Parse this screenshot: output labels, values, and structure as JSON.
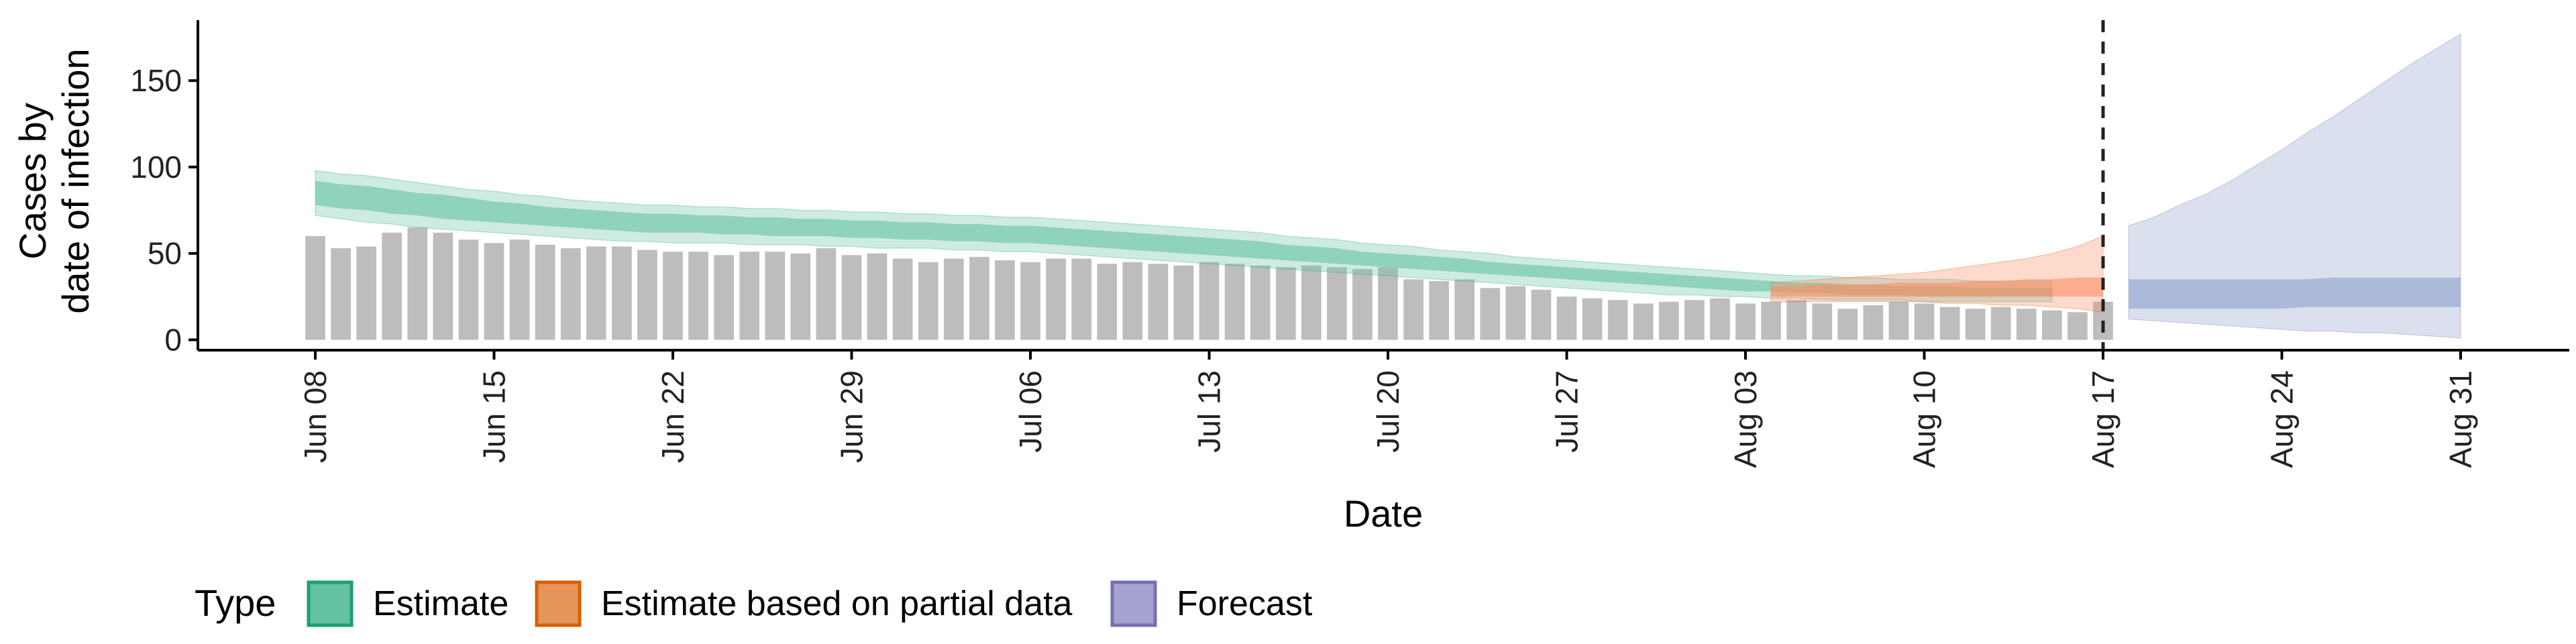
{
  "chart_data": {
    "type": "bar",
    "title": "",
    "xlabel": "Date",
    "ylabel_lines": [
      "Cases by",
      "date of infection"
    ],
    "ylim": [
      -6,
      185
    ],
    "yticks": [
      0,
      50,
      100,
      150
    ],
    "x_start": "2020-06-08",
    "x_end": "2020-08-31",
    "xticks": [
      {
        "date": "2020-06-08",
        "label": "Jun 08"
      },
      {
        "date": "2020-06-15",
        "label": "Jun 15"
      },
      {
        "date": "2020-06-22",
        "label": "Jun 22"
      },
      {
        "date": "2020-06-29",
        "label": "Jun 29"
      },
      {
        "date": "2020-07-06",
        "label": "Jul 06"
      },
      {
        "date": "2020-07-13",
        "label": "Jul 13"
      },
      {
        "date": "2020-07-20",
        "label": "Jul 20"
      },
      {
        "date": "2020-07-27",
        "label": "Jul 27"
      },
      {
        "date": "2020-08-03",
        "label": "Aug 03"
      },
      {
        "date": "2020-08-10",
        "label": "Aug 10"
      },
      {
        "date": "2020-08-17",
        "label": "Aug 17"
      },
      {
        "date": "2020-08-24",
        "label": "Aug 24"
      },
      {
        "date": "2020-08-31",
        "label": "Aug 31"
      }
    ],
    "vline_date": "2020-08-17",
    "bars": {
      "color": "#BDBDBD",
      "dates": [
        "2020-06-08",
        "2020-06-09",
        "2020-06-10",
        "2020-06-11",
        "2020-06-12",
        "2020-06-13",
        "2020-06-14",
        "2020-06-15",
        "2020-06-16",
        "2020-06-17",
        "2020-06-18",
        "2020-06-19",
        "2020-06-20",
        "2020-06-21",
        "2020-06-22",
        "2020-06-23",
        "2020-06-24",
        "2020-06-25",
        "2020-06-26",
        "2020-06-27",
        "2020-06-28",
        "2020-06-29",
        "2020-06-30",
        "2020-07-01",
        "2020-07-02",
        "2020-07-03",
        "2020-07-04",
        "2020-07-05",
        "2020-07-06",
        "2020-07-07",
        "2020-07-08",
        "2020-07-09",
        "2020-07-10",
        "2020-07-11",
        "2020-07-12",
        "2020-07-13",
        "2020-07-14",
        "2020-07-15",
        "2020-07-16",
        "2020-07-17",
        "2020-07-18",
        "2020-07-19",
        "2020-07-20",
        "2020-07-21",
        "2020-07-22",
        "2020-07-23",
        "2020-07-24",
        "2020-07-25",
        "2020-07-26",
        "2020-07-27",
        "2020-07-28",
        "2020-07-29",
        "2020-07-30",
        "2020-07-31",
        "2020-08-01",
        "2020-08-02",
        "2020-08-03",
        "2020-08-04",
        "2020-08-05",
        "2020-08-06",
        "2020-08-07",
        "2020-08-08",
        "2020-08-09",
        "2020-08-10",
        "2020-08-11",
        "2020-08-12",
        "2020-08-13",
        "2020-08-14",
        "2020-08-15",
        "2020-08-16",
        "2020-08-17"
      ],
      "values": [
        60,
        53,
        54,
        62,
        65,
        62,
        58,
        56,
        58,
        55,
        53,
        54,
        54,
        52,
        51,
        51,
        49,
        51,
        51,
        50,
        53,
        49,
        50,
        47,
        45,
        47,
        48,
        46,
        45,
        47,
        47,
        44,
        45,
        44,
        43,
        45,
        44,
        43,
        42,
        43,
        42,
        41,
        42,
        35,
        34,
        35,
        30,
        31,
        29,
        25,
        24,
        23,
        21,
        22,
        23,
        24,
        21,
        22,
        23,
        21,
        18,
        20,
        22,
        21,
        19,
        18,
        19,
        18,
        17,
        16,
        22
      ]
    },
    "series": [
      {
        "name": "Estimate",
        "color": "#66C2A5",
        "stroke": "#1B9E77",
        "start": "2020-06-08",
        "median": [
          85,
          83,
          82,
          80,
          78,
          77,
          75,
          73,
          72,
          71,
          70,
          69,
          68,
          67,
          67,
          67,
          66,
          66,
          65,
          65,
          64,
          64,
          63,
          63,
          62,
          62,
          61,
          61,
          60,
          60,
          59,
          58,
          57,
          56,
          55,
          54,
          53,
          52,
          50,
          49,
          48,
          47,
          46,
          45,
          44,
          43,
          41,
          40,
          39,
          38,
          37,
          36,
          35,
          34,
          33,
          32,
          32,
          31,
          30,
          30,
          29,
          29,
          28,
          28,
          28,
          28,
          28,
          28,
          27
        ],
        "inner_lo": [
          78,
          76,
          75,
          73,
          72,
          70,
          69,
          68,
          67,
          66,
          65,
          64,
          63,
          62,
          62,
          62,
          61,
          61,
          60,
          60,
          60,
          59,
          59,
          58,
          58,
          57,
          57,
          56,
          56,
          55,
          54,
          53,
          52,
          51,
          50,
          49,
          48,
          47,
          46,
          45,
          44,
          43,
          42,
          41,
          40,
          39,
          38,
          37,
          36,
          35,
          34,
          33,
          32,
          31,
          30,
          29,
          28,
          28,
          27,
          27,
          26,
          26,
          26,
          25,
          25,
          25,
          25,
          25,
          25
        ],
        "inner_hi": [
          92,
          90,
          89,
          87,
          85,
          84,
          82,
          80,
          79,
          77,
          76,
          75,
          74,
          73,
          73,
          72,
          72,
          71,
          71,
          70,
          70,
          69,
          69,
          68,
          68,
          67,
          67,
          66,
          66,
          65,
          64,
          63,
          62,
          61,
          60,
          59,
          58,
          57,
          55,
          54,
          53,
          51,
          50,
          49,
          48,
          47,
          45,
          44,
          43,
          42,
          41,
          40,
          39,
          38,
          37,
          36,
          35,
          34,
          33,
          33,
          32,
          32,
          31,
          31,
          31,
          30,
          30,
          30,
          30
        ],
        "outer_lo": [
          72,
          70,
          68,
          67,
          65,
          64,
          63,
          62,
          61,
          60,
          59,
          58,
          57,
          57,
          56,
          56,
          56,
          55,
          55,
          55,
          54,
          54,
          53,
          53,
          53,
          52,
          52,
          51,
          51,
          50,
          49,
          48,
          47,
          46,
          45,
          44,
          43,
          42,
          41,
          40,
          39,
          38,
          37,
          36,
          35,
          34,
          33,
          32,
          31,
          30,
          29,
          28,
          27,
          26,
          26,
          25,
          25,
          24,
          24,
          23,
          23,
          23,
          23,
          22,
          22,
          22,
          22,
          22,
          22
        ],
        "outer_hi": [
          98,
          96,
          95,
          93,
          91,
          89,
          87,
          86,
          84,
          83,
          81,
          80,
          79,
          78,
          78,
          77,
          77,
          76,
          76,
          75,
          75,
          74,
          74,
          73,
          73,
          72,
          72,
          71,
          71,
          70,
          69,
          68,
          67,
          66,
          65,
          64,
          63,
          62,
          60,
          59,
          58,
          56,
          55,
          54,
          52,
          51,
          50,
          48,
          47,
          46,
          45,
          44,
          43,
          42,
          41,
          40,
          39,
          38,
          37,
          37,
          36,
          36,
          35,
          35,
          35,
          34,
          34,
          34,
          34
        ]
      },
      {
        "name": "Estimate based on partial data",
        "color": "#FC8D62",
        "stroke": "#D95F02",
        "start": "2020-08-04",
        "median": [
          28,
          28,
          29,
          29,
          29,
          29,
          29,
          29,
          30,
          30,
          30,
          30,
          30,
          30
        ],
        "inner_lo": [
          25,
          25,
          25,
          25,
          25,
          25,
          25,
          25,
          25,
          25,
          25,
          25,
          25,
          25
        ],
        "inner_hi": [
          31,
          31,
          32,
          32,
          32,
          33,
          33,
          33,
          34,
          34,
          35,
          35,
          36,
          36
        ],
        "outer_lo": [
          22,
          22,
          22,
          22,
          22,
          22,
          22,
          21,
          21,
          20,
          20,
          19,
          18,
          16
        ],
        "outer_hi": [
          33,
          34,
          35,
          36,
          37,
          38,
          39,
          41,
          43,
          45,
          47,
          50,
          54,
          60
        ]
      },
      {
        "name": "Forecast",
        "color": "#8DA0CB",
        "stroke": "#7570B3",
        "start": "2020-08-18",
        "median": [
          26,
          26,
          26,
          26,
          26,
          26,
          26,
          26,
          27,
          27,
          27,
          27,
          27,
          27
        ],
        "inner_lo": [
          18,
          18,
          18,
          18,
          18,
          18,
          18,
          19,
          19,
          19,
          19,
          19,
          19,
          19
        ],
        "inner_hi": [
          35,
          35,
          35,
          35,
          35,
          35,
          35,
          35,
          36,
          36,
          36,
          36,
          36,
          36
        ],
        "outer_lo": [
          12,
          11,
          10,
          9,
          8,
          7,
          6,
          5,
          5,
          4,
          4,
          3,
          2,
          1
        ],
        "outer_hi": [
          66,
          71,
          78,
          84,
          92,
          101,
          110,
          120,
          129,
          139,
          149,
          159,
          168,
          177
        ]
      }
    ],
    "legend": {
      "title": "Type",
      "position": "bottom-left",
      "items": [
        {
          "label": "Estimate",
          "color": "#66C2A5",
          "stroke": "#1B9E77"
        },
        {
          "label": "Estimate based on partial data",
          "color": "#E6955A",
          "stroke": "#D95F02"
        },
        {
          "label": "Forecast",
          "color": "#A6A3D3",
          "stroke": "#7570B3"
        }
      ]
    },
    "grid": false
  }
}
